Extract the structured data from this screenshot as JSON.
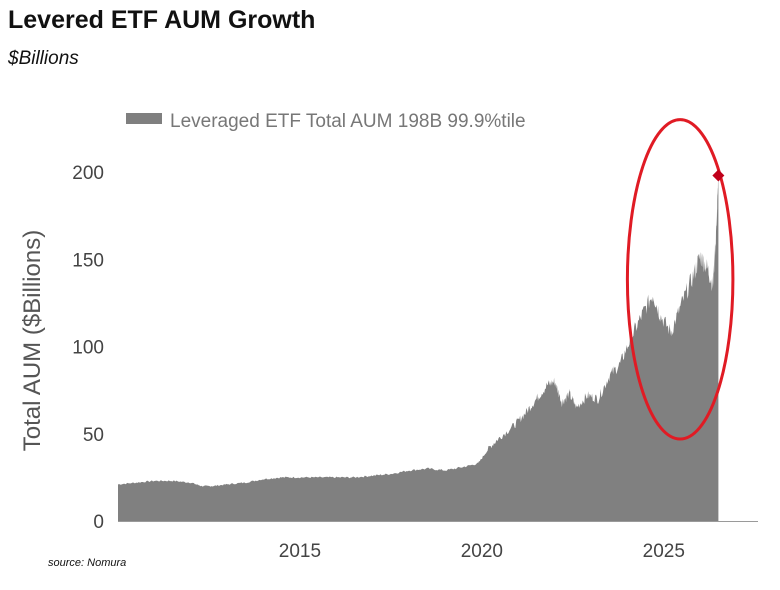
{
  "title": "Levered ETF AUM Growth",
  "subtitle": "$Billions",
  "source": "source: Nomura",
  "chart_data": {
    "type": "area",
    "ylabel": "Total AUM ($Billions)",
    "xlabel": "",
    "ylim": [
      0,
      200
    ],
    "xlim": [
      2010.0,
      2026.6
    ],
    "y_ticks": [
      0,
      50,
      100,
      150,
      200
    ],
    "x_ticks": [
      2015,
      2020,
      2025
    ],
    "legend": {
      "label": "Leveraged ETF Total AUM 198B 99.9%tile",
      "position": "top-left"
    },
    "series": [
      {
        "name": "Leveraged ETF Total AUM 198B 99.9%tile",
        "points": [
          [
            2010.0,
            21
          ],
          [
            2010.5,
            22
          ],
          [
            2011.0,
            23
          ],
          [
            2011.5,
            23
          ],
          [
            2012.0,
            22
          ],
          [
            2012.3,
            20
          ],
          [
            2012.6,
            20
          ],
          [
            2013.0,
            21
          ],
          [
            2013.5,
            22
          ],
          [
            2014.0,
            24
          ],
          [
            2014.5,
            25
          ],
          [
            2015.0,
            25
          ],
          [
            2015.5,
            25
          ],
          [
            2016.0,
            25
          ],
          [
            2016.5,
            25
          ],
          [
            2017.0,
            26
          ],
          [
            2017.5,
            27
          ],
          [
            2018.0,
            29
          ],
          [
            2018.5,
            30
          ],
          [
            2019.0,
            29
          ],
          [
            2019.5,
            31
          ],
          [
            2019.9,
            33
          ],
          [
            2020.2,
            42
          ],
          [
            2020.5,
            48
          ],
          [
            2020.9,
            55
          ],
          [
            2021.2,
            62
          ],
          [
            2021.5,
            70
          ],
          [
            2021.8,
            78
          ],
          [
            2022.0,
            80
          ],
          [
            2022.2,
            68
          ],
          [
            2022.4,
            73
          ],
          [
            2022.6,
            65
          ],
          [
            2022.9,
            72
          ],
          [
            2023.2,
            70
          ],
          [
            2023.5,
            83
          ],
          [
            2023.8,
            90
          ],
          [
            2024.1,
            105
          ],
          [
            2024.4,
            118
          ],
          [
            2024.7,
            130
          ],
          [
            2024.9,
            118
          ],
          [
            2025.2,
            108
          ],
          [
            2025.5,
            125
          ],
          [
            2025.8,
            140
          ],
          [
            2026.0,
            152
          ],
          [
            2026.2,
            145
          ],
          [
            2026.35,
            135
          ],
          [
            2026.45,
            170
          ],
          [
            2026.5,
            198
          ]
        ]
      }
    ],
    "annotations": [
      {
        "type": "marker",
        "x": 2026.5,
        "y": 198,
        "shape": "diamond",
        "color": "#c0001a"
      },
      {
        "type": "ellipse-highlight",
        "x_range": [
          2024.0,
          2026.9
        ],
        "y_range": [
          47,
          230
        ],
        "color": "#e01b24"
      }
    ],
    "colors": {
      "area": "#808080",
      "axis": "#9a9a9a",
      "legend_swatch": "#7f7f7f"
    },
    "grid": false
  }
}
